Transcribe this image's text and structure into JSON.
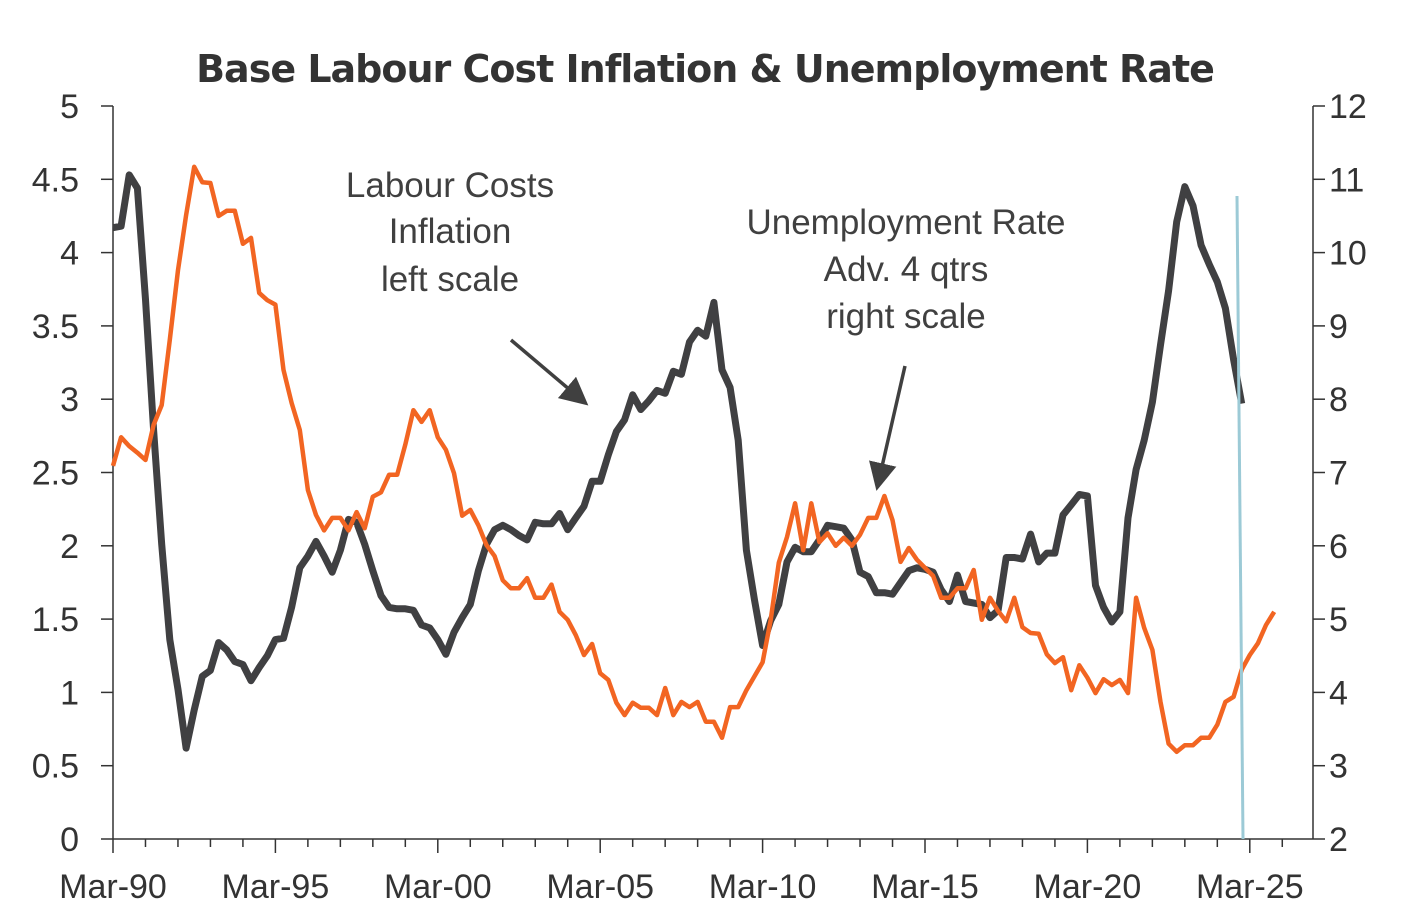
{
  "chart_data": {
    "type": "line",
    "title": "Base Labour Cost Inflation & Unemployment Rate",
    "frequency": "quarterly",
    "start": "Mar-90",
    "x_tick_labels": [
      "Mar-90",
      "Mar-95",
      "Mar-00",
      "Mar-05",
      "Mar-10",
      "Mar-15",
      "Mar-20",
      "Mar-25"
    ],
    "y_left": {
      "range": [
        0,
        5
      ],
      "ticks": [
        "0",
        "0.5",
        "1",
        "1.5",
        "2",
        "2.5",
        "3",
        "3.5",
        "4",
        "4.5",
        "5"
      ]
    },
    "y_right": {
      "range": [
        2,
        12
      ],
      "ticks": [
        "2",
        "3",
        "4",
        "5",
        "6",
        "7",
        "8",
        "9",
        "10",
        "11",
        "12"
      ]
    },
    "grid": false,
    "legend": "none",
    "series": [
      {
        "axis": "left",
        "color": "#404042",
        "values": [
          4.17,
          4.18,
          4.53,
          4.44,
          3.68,
          2.79,
          2.01,
          1.36,
          1.02,
          0.62,
          0.88,
          1.11,
          1.15,
          1.34,
          1.29,
          1.21,
          1.19,
          1.08,
          1.17,
          1.25,
          1.36,
          1.37,
          1.58,
          1.85,
          1.93,
          2.03,
          1.93,
          1.82,
          1.97,
          2.18,
          2.16,
          2.01,
          1.83,
          1.66,
          1.58,
          1.57,
          1.57,
          1.56,
          1.46,
          1.44,
          1.36,
          1.26,
          1.41,
          1.51,
          1.6,
          1.83,
          2.01,
          2.11,
          2.14,
          2.11,
          2.07,
          2.04,
          2.16,
          2.15,
          2.15,
          2.22,
          2.11,
          2.19,
          2.27,
          2.44,
          2.44,
          2.62,
          2.78,
          2.86,
          3.03,
          2.93,
          2.99,
          3.06,
          3.04,
          3.19,
          3.17,
          3.39,
          3.47,
          3.43,
          3.66,
          3.2,
          3.08,
          2.72,
          1.97,
          1.63,
          1.32,
          1.49,
          1.6,
          1.89,
          1.99,
          1.96,
          1.96,
          2.04,
          2.14,
          2.13,
          2.12,
          2.04,
          1.82,
          1.79,
          1.68,
          1.68,
          1.67,
          1.75,
          1.83,
          1.85,
          1.84,
          1.82,
          1.7,
          1.62,
          1.8,
          1.62,
          1.61,
          1.6,
          1.51,
          1.56,
          1.92,
          1.92,
          1.91,
          2.08,
          1.89,
          1.95,
          1.95,
          2.21,
          2.28,
          2.35,
          2.34,
          1.73,
          1.58,
          1.48,
          1.55,
          2.19,
          2.52,
          2.72,
          2.98,
          3.37,
          3.74,
          4.21,
          4.45,
          4.32,
          4.05,
          3.92,
          3.8,
          3.62,
          3.27,
          2.97
        ]
      },
      {
        "axis": "right",
        "color": "#f26522",
        "values": [
          7.09,
          7.48,
          7.36,
          7.27,
          7.17,
          7.65,
          7.92,
          8.81,
          9.76,
          10.51,
          11.17,
          10.96,
          10.95,
          10.5,
          10.57,
          10.57,
          10.12,
          10.2,
          9.45,
          9.35,
          9.29,
          8.4,
          7.95,
          7.58,
          6.76,
          6.42,
          6.21,
          6.38,
          6.38,
          6.21,
          6.46,
          6.24,
          6.67,
          6.73,
          6.97,
          6.97,
          7.38,
          7.85,
          7.69,
          7.85,
          7.48,
          7.31,
          6.99,
          6.41,
          6.49,
          6.28,
          6.01,
          5.86,
          5.53,
          5.42,
          5.42,
          5.56,
          5.29,
          5.29,
          5.47,
          5.1,
          4.99,
          4.78,
          4.51,
          4.66,
          4.26,
          4.17,
          3.86,
          3.69,
          3.86,
          3.79,
          3.79,
          3.69,
          4.06,
          3.69,
          3.87,
          3.8,
          3.87,
          3.6,
          3.6,
          3.38,
          3.8,
          3.8,
          4.03,
          4.22,
          4.41,
          4.99,
          5.77,
          6.12,
          6.58,
          5.94,
          6.58,
          6.05,
          6.17,
          6.0,
          6.11,
          6.0,
          6.15,
          6.38,
          6.38,
          6.68,
          6.35,
          5.78,
          5.97,
          5.81,
          5.7,
          5.59,
          5.29,
          5.29,
          5.42,
          5.42,
          5.67,
          4.99,
          5.29,
          5.11,
          4.97,
          5.29,
          4.89,
          4.81,
          4.8,
          4.52,
          4.4,
          4.48,
          4.03,
          4.37,
          4.2,
          3.99,
          4.18,
          4.1,
          4.17,
          3.99,
          5.29,
          4.88,
          4.58,
          3.87,
          3.3,
          3.19,
          3.28,
          3.28,
          3.38,
          3.38,
          3.56,
          3.87,
          3.94,
          4.31,
          4.51,
          4.67,
          4.92,
          5.1
        ]
      }
    ],
    "annotations": [
      {
        "lines": [
          "Labour Costs",
          "Inflation",
          "left scale"
        ]
      },
      {
        "lines": [
          "Unemployment Rate",
          "Adv. 4 qtrs",
          "right scale"
        ]
      }
    ],
    "marker_line": {
      "color": "#9ccad6"
    }
  }
}
